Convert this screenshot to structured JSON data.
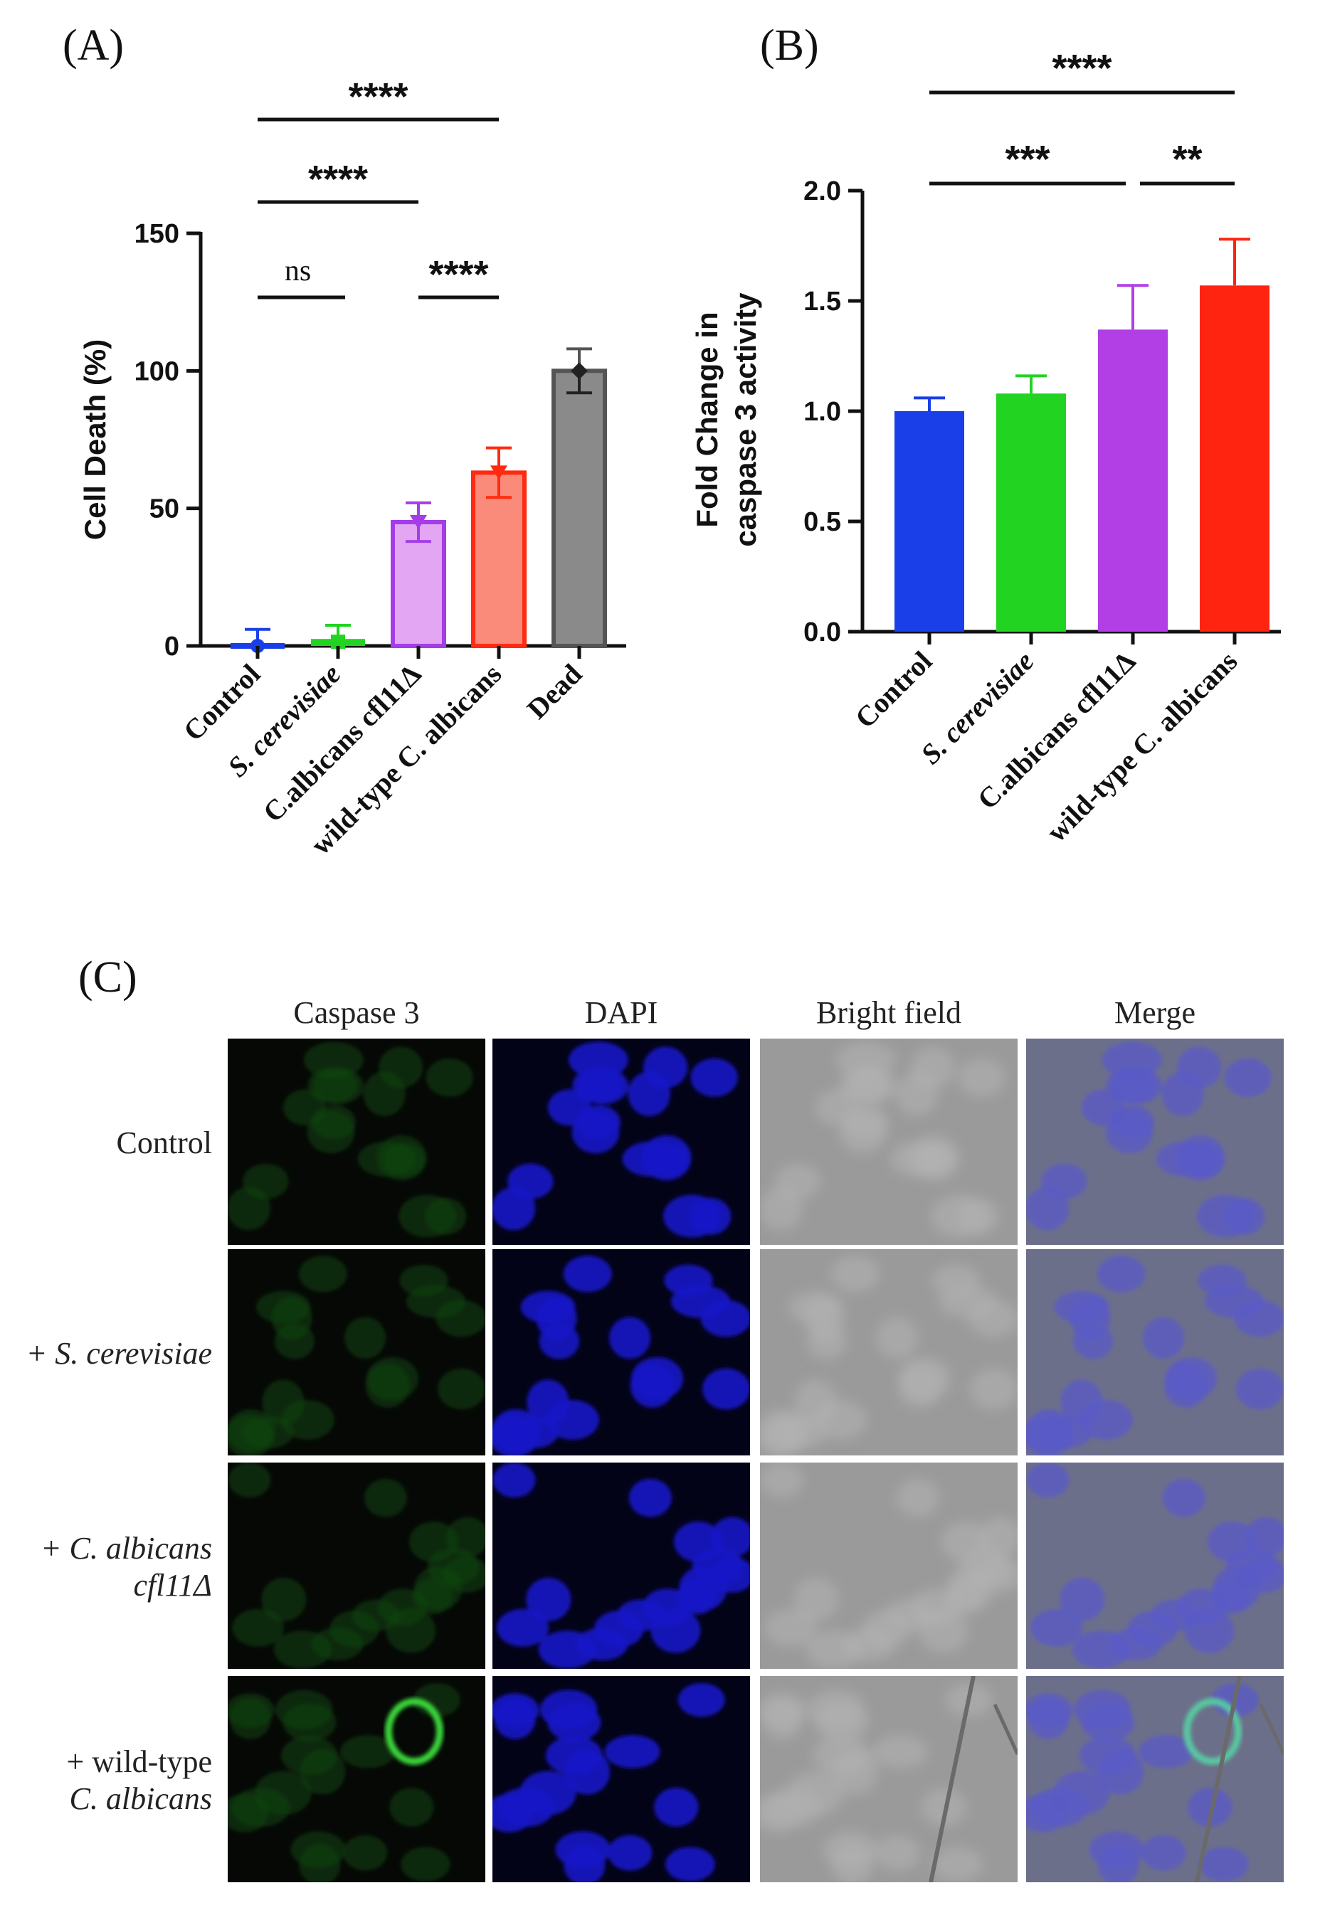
{
  "panels": {
    "a": "(A)",
    "b": "(B)",
    "c": "(C)"
  },
  "chart_data": [
    {
      "type": "bar",
      "ylabel": "Cell Death (%)",
      "ylim": [
        0,
        150
      ],
      "yticks": [
        "0",
        "50",
        "100",
        "150"
      ],
      "categories": [
        "Control",
        "S. cerevisiae",
        "C.albicans cfl11Δ",
        "wild-type C. albicans",
        "Dead"
      ],
      "category_italic": [
        false,
        true,
        false,
        false,
        false
      ],
      "values": [
        0,
        1.5,
        45,
        63,
        100
      ],
      "errors": [
        6,
        6,
        7,
        9,
        8
      ],
      "colors": [
        "#1a3fe8",
        "#22d322",
        "#a43ce8",
        "#ff2a10",
        "#555555"
      ],
      "fills": [
        "#1a3fe8",
        "#22d322",
        "#e2a6f2",
        "#fa8a7a",
        "#8a8a8a"
      ],
      "significance": [
        {
          "label": "ns",
          "from": 0,
          "to": 1
        },
        {
          "label": "****",
          "from": 2,
          "to": 3
        },
        {
          "label": "****",
          "from": 0,
          "to": 2
        },
        {
          "label": "****",
          "from": 0,
          "to": 3
        }
      ]
    },
    {
      "type": "bar",
      "ylabel_lines": [
        "Fold Change in",
        "caspase 3 activity"
      ],
      "ylim": [
        0,
        2.0
      ],
      "yticks": [
        "0.0",
        "0.5",
        "1.0",
        "1.5",
        "2.0"
      ],
      "categories": [
        "Control",
        "S. cerevisiae",
        "C.albicans cfl11Δ",
        "wild-type C. albicans"
      ],
      "category_italic": [
        false,
        true,
        false,
        false
      ],
      "values": [
        1.0,
        1.08,
        1.37,
        1.57
      ],
      "errors": [
        0.06,
        0.08,
        0.2,
        0.21
      ],
      "colors": [
        "#1a3fe8",
        "#22d322",
        "#b23ee6",
        "#ff2410"
      ],
      "significance": [
        {
          "label": "***",
          "from": 0,
          "to": 2
        },
        {
          "label": "**",
          "from": 2,
          "to": 3
        },
        {
          "label": "****",
          "from": 0,
          "to": 3
        }
      ]
    }
  ],
  "microscopy": {
    "columns": [
      "Caspase 3",
      "DAPI",
      "Bright field",
      "Merge"
    ],
    "rows": [
      {
        "lines": [
          "Control"
        ],
        "italic": [
          false
        ]
      },
      {
        "lines": [
          "+ S. cerevisiae"
        ],
        "italic": [
          true
        ]
      },
      {
        "lines": [
          "+ C. albicans",
          "cfl11Δ"
        ],
        "italic": [
          true,
          true
        ]
      },
      {
        "lines": [
          "+ wild-type",
          "C. albicans"
        ],
        "italic": [
          false,
          true
        ]
      }
    ]
  }
}
